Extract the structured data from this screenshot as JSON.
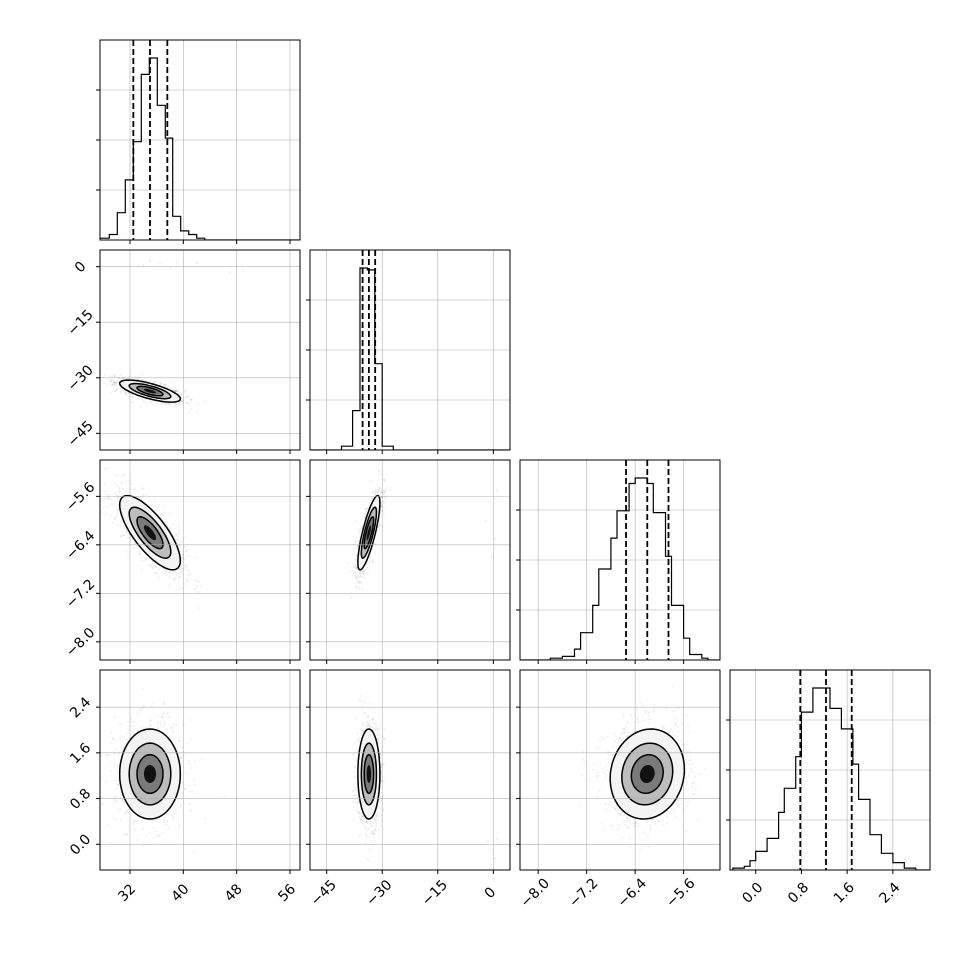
{
  "chart_data": {
    "type": "corner",
    "parameters": [
      {
        "ticks": [
          32,
          40,
          48,
          56
        ],
        "tick_labels": [
          "32",
          "40",
          "48",
          "56"
        ],
        "range": [
          27.5,
          57.5
        ],
        "quantiles": [
          32.5,
          35.0,
          37.6
        ],
        "median": 35.0,
        "sigma": 2.6,
        "histogram": {
          "bin_edges": [
            27.5,
            28.9,
            30.1,
            31.3,
            32.5,
            33.7,
            34.9,
            36.1,
            37.3,
            38.4,
            39.6,
            40.8,
            42.0,
            43.2,
            44.4
          ],
          "counts": [
            0.01,
            0.03,
            0.15,
            0.33,
            0.54,
            0.91,
            1.0,
            0.74,
            0.56,
            0.13,
            0.05,
            0.03,
            0.01,
            0.0
          ]
        }
      },
      {
        "ticks": [
          -45,
          -30,
          -15,
          0
        ],
        "tick_labels": [
          "−45",
          "−30",
          "−15",
          "0"
        ],
        "range": [
          -49.5,
          4.5
        ],
        "quantiles": [
          -35.3,
          -33.6,
          -31.9
        ],
        "median": -33.6,
        "sigma": 1.7,
        "histogram": {
          "bin_edges": [
            -41.0,
            -38.0,
            -36.0,
            -34.0,
            -32.0,
            -30.0,
            -27.0
          ],
          "counts": [
            0.02,
            0.21,
            0.97,
            0.96,
            0.46,
            0.02
          ]
        }
      },
      {
        "ticks": [
          -8.0,
          -7.2,
          -6.4,
          -5.6
        ],
        "tick_labels": [
          "−8.0",
          "−7.2",
          "−6.4",
          "−5.6"
        ],
        "range": [
          -8.3,
          -5.0
        ],
        "quantiles": [
          -6.55,
          -6.2,
          -5.85
        ],
        "median": -6.2,
        "sigma": 0.35,
        "histogram": {
          "bin_edges": [
            -7.8,
            -7.6,
            -7.4,
            -7.3,
            -7.1,
            -7.0,
            -6.8,
            -6.7,
            -6.5,
            -6.4,
            -6.2,
            -6.1,
            -5.9,
            -5.8,
            -5.6,
            -5.5,
            -5.3,
            -5.2,
            -5.0
          ],
          "counts": [
            0.01,
            0.02,
            0.06,
            0.15,
            0.3,
            0.5,
            0.67,
            0.82,
            0.97,
            1.0,
            0.97,
            0.81,
            0.57,
            0.3,
            0.12,
            0.03,
            0.01,
            0.0
          ]
        }
      },
      {
        "ticks": [
          0.0,
          0.8,
          1.6,
          2.4
        ],
        "tick_labels": [
          "0.0",
          "0.8",
          "1.6",
          "2.4"
        ],
        "range": [
          -0.45,
          3.05
        ],
        "quantiles": [
          0.78,
          1.23,
          1.68
        ],
        "median": 1.23,
        "sigma": 0.45,
        "histogram": {
          "bin_edges": [
            -0.4,
            -0.2,
            -0.1,
            0.0,
            0.2,
            0.4,
            0.5,
            0.7,
            0.8,
            1.0,
            1.2,
            1.3,
            1.5,
            1.7,
            1.8,
            2.0,
            2.2,
            2.4,
            2.6,
            2.8
          ],
          "counts": [
            0.01,
            0.02,
            0.05,
            0.1,
            0.17,
            0.31,
            0.44,
            0.61,
            0.85,
            0.98,
            0.98,
            0.87,
            0.76,
            0.57,
            0.38,
            0.19,
            0.09,
            0.04,
            0.01
          ]
        }
      }
    ],
    "correlations": [
      {
        "x": 0,
        "y": 1,
        "rho": -0.7
      },
      {
        "x": 0,
        "y": 2,
        "rho": -0.75
      },
      {
        "x": 1,
        "y": 2,
        "rho": 0.8
      },
      {
        "x": 0,
        "y": 3,
        "rho": 0.0
      },
      {
        "x": 1,
        "y": 3,
        "rho": 0.0
      },
      {
        "x": 2,
        "y": 3,
        "rho": 0.1
      }
    ],
    "outliers": [
      {
        "x": 0,
        "y": 1,
        "points": [
          [
            35,
            1.5
          ],
          [
            36.5,
            0.8
          ],
          [
            38,
            -0.5
          ],
          [
            34,
            0.3
          ],
          [
            39,
            1.2
          ],
          [
            42,
            1.0
          ],
          [
            47,
            -1.5
          ],
          [
            49,
            -1.0
          ]
        ]
      },
      {
        "x": 1,
        "y": 2,
        "points": [
          [
            -1,
            -5.7
          ],
          [
            -2,
            -6.0
          ],
          [
            0.5,
            -6.3
          ],
          [
            -0.5,
            -6.6
          ],
          [
            1,
            -5.5
          ]
        ]
      },
      {
        "x": 1,
        "y": 3,
        "points": [
          [
            -1,
            -0.1
          ],
          [
            0.5,
            -0.25
          ],
          [
            -1.5,
            0.05
          ],
          [
            1,
            0.1
          ]
        ]
      }
    ],
    "grid": true,
    "levels": 4
  }
}
